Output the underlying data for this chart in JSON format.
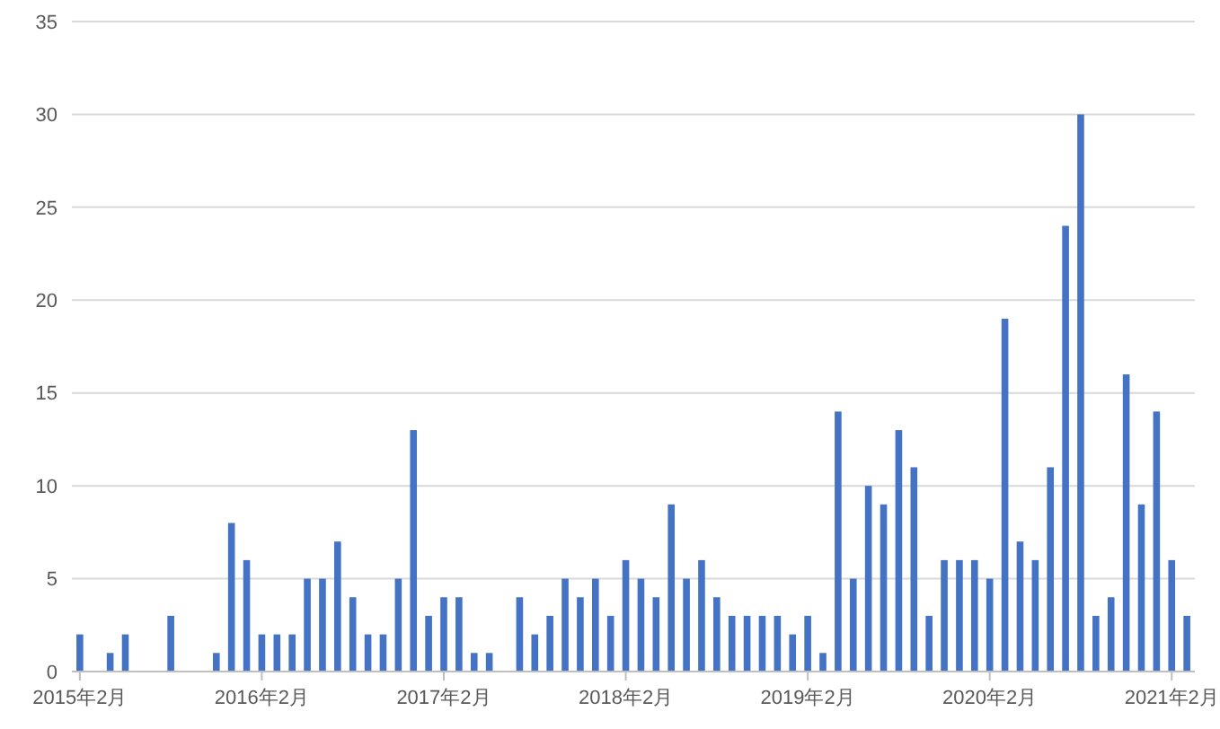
{
  "chart_data": {
    "type": "bar",
    "categories": [
      "2015年2月",
      null,
      null,
      null,
      null,
      null,
      null,
      null,
      null,
      null,
      null,
      null,
      "2016年2月",
      null,
      null,
      null,
      null,
      null,
      null,
      null,
      null,
      null,
      null,
      null,
      "2017年2月",
      null,
      null,
      null,
      null,
      null,
      null,
      null,
      null,
      null,
      null,
      null,
      "2018年2月",
      null,
      null,
      null,
      null,
      null,
      null,
      null,
      null,
      null,
      null,
      null,
      "2019年2月",
      null,
      null,
      null,
      null,
      null,
      null,
      null,
      null,
      null,
      null,
      null,
      "2020年2月",
      null,
      null,
      null,
      null,
      null,
      null,
      null,
      null,
      null,
      null,
      null,
      "2021年2月",
      null
    ],
    "values": [
      2,
      0,
      1,
      2,
      0,
      0,
      3,
      0,
      0,
      1,
      8,
      6,
      2,
      2,
      2,
      5,
      5,
      7,
      4,
      2,
      2,
      5,
      13,
      3,
      4,
      4,
      1,
      1,
      0,
      4,
      2,
      3,
      5,
      4,
      5,
      3,
      6,
      5,
      4,
      9,
      5,
      6,
      4,
      3,
      3,
      3,
      3,
      2,
      3,
      1,
      14,
      5,
      10,
      9,
      13,
      11,
      3,
      6,
      6,
      6,
      5,
      19,
      7,
      6,
      11,
      24,
      30,
      3,
      4,
      16,
      9,
      14,
      6,
      3
    ],
    "color": "#4472c4",
    "ylim": [
      0,
      35
    ],
    "yticks": [
      0,
      5,
      10,
      15,
      20,
      25,
      30,
      35
    ],
    "grid": "y"
  }
}
